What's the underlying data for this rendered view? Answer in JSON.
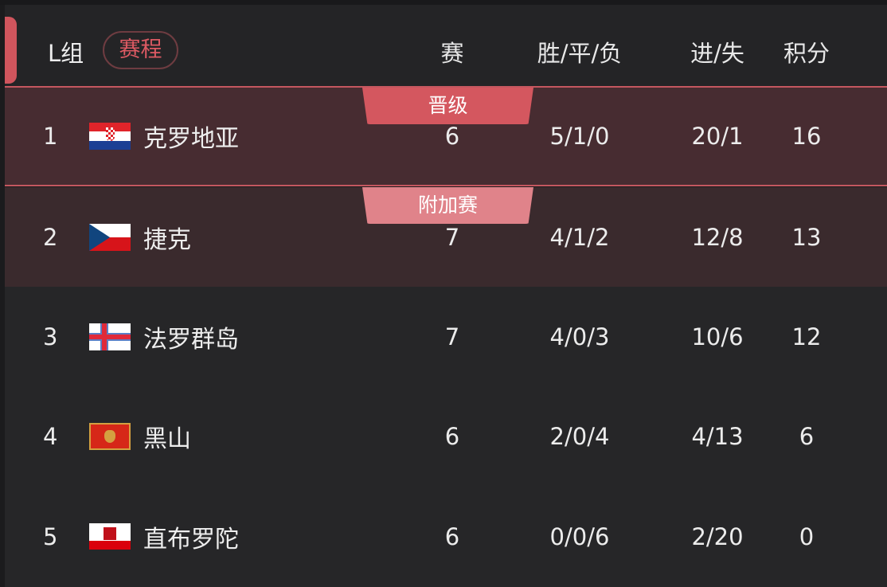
{
  "header": {
    "group": "L组",
    "schedule": "赛程",
    "columns": [
      "赛",
      "胜/平/负",
      "进/失",
      "积分"
    ]
  },
  "colors": {
    "accent": "#d0555d",
    "promoted_bg": "#472c31",
    "playoff_bg": "#3a2a2d",
    "badge_promoted": "#d4575f",
    "badge_playoff": "#e0838a"
  },
  "rows": [
    {
      "rank": "1",
      "flag": "croatia-flag",
      "team": "克罗地亚",
      "played": "6",
      "wdl": "5/1/0",
      "goals": "20/1",
      "points": "16",
      "badge": "晋级"
    },
    {
      "rank": "2",
      "flag": "czech-flag",
      "team": "捷克",
      "played": "7",
      "wdl": "4/1/2",
      "goals": "12/8",
      "points": "13",
      "badge": "附加赛"
    },
    {
      "rank": "3",
      "flag": "faroe-islands-flag",
      "team": "法罗群岛",
      "played": "7",
      "wdl": "4/0/3",
      "goals": "10/6",
      "points": "12"
    },
    {
      "rank": "4",
      "flag": "montenegro-flag",
      "team": "黑山",
      "played": "6",
      "wdl": "2/0/4",
      "goals": "4/13",
      "points": "6"
    },
    {
      "rank": "5",
      "flag": "gibraltar-flag",
      "team": "直布罗陀",
      "played": "6",
      "wdl": "0/0/6",
      "goals": "2/20",
      "points": "0"
    }
  ]
}
